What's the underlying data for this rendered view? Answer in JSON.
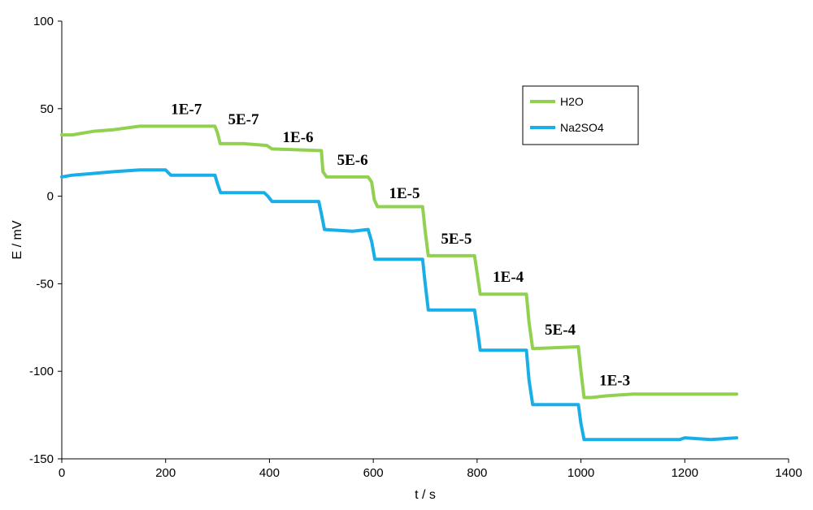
{
  "chart_data": {
    "type": "line",
    "title": "",
    "xlabel": "t / s",
    "ylabel": "E / mV",
    "xlim": [
      0,
      1400
    ],
    "ylim": [
      -150,
      100
    ],
    "x_ticks": [
      0,
      200,
      400,
      600,
      800,
      1000,
      1200,
      1400
    ],
    "y_ticks": [
      -150,
      -100,
      -50,
      0,
      50,
      100
    ],
    "grid": false,
    "legend_position": "top-right",
    "series": [
      {
        "name": "H2O",
        "color": "#92d050",
        "points": [
          [
            0,
            35
          ],
          [
            20,
            35
          ],
          [
            60,
            37
          ],
          [
            100,
            38
          ],
          [
            150,
            40
          ],
          [
            200,
            40
          ],
          [
            250,
            40
          ],
          [
            295,
            40
          ],
          [
            300,
            36
          ],
          [
            305,
            30
          ],
          [
            350,
            30
          ],
          [
            395,
            29
          ],
          [
            405,
            27
          ],
          [
            500,
            26
          ],
          [
            503,
            14
          ],
          [
            510,
            11
          ],
          [
            590,
            11
          ],
          [
            597,
            8
          ],
          [
            602,
            -2
          ],
          [
            608,
            -6
          ],
          [
            695,
            -6
          ],
          [
            700,
            -20
          ],
          [
            706,
            -34
          ],
          [
            795,
            -34
          ],
          [
            800,
            -44
          ],
          [
            806,
            -56
          ],
          [
            895,
            -56
          ],
          [
            900,
            -72
          ],
          [
            907,
            -87
          ],
          [
            995,
            -86
          ],
          [
            1000,
            -100
          ],
          [
            1006,
            -115
          ],
          [
            1020,
            -115
          ],
          [
            1050,
            -114
          ],
          [
            1100,
            -113
          ],
          [
            1300,
            -113
          ]
        ]
      },
      {
        "name": "Na2SO4",
        "color": "#1aaee8",
        "points": [
          [
            0,
            11
          ],
          [
            20,
            12
          ],
          [
            60,
            13
          ],
          [
            100,
            14
          ],
          [
            150,
            15
          ],
          [
            200,
            15
          ],
          [
            210,
            12
          ],
          [
            295,
            12
          ],
          [
            300,
            7
          ],
          [
            306,
            2
          ],
          [
            340,
            2
          ],
          [
            390,
            2
          ],
          [
            397,
            0
          ],
          [
            405,
            -3
          ],
          [
            495,
            -3
          ],
          [
            500,
            -10
          ],
          [
            506,
            -19
          ],
          [
            560,
            -20
          ],
          [
            590,
            -19
          ],
          [
            597,
            -26
          ],
          [
            603,
            -36
          ],
          [
            695,
            -36
          ],
          [
            700,
            -50
          ],
          [
            706,
            -65
          ],
          [
            795,
            -65
          ],
          [
            800,
            -75
          ],
          [
            806,
            -88
          ],
          [
            895,
            -88
          ],
          [
            900,
            -105
          ],
          [
            907,
            -119
          ],
          [
            995,
            -119
          ],
          [
            1000,
            -130
          ],
          [
            1006,
            -139
          ],
          [
            1100,
            -139
          ],
          [
            1190,
            -139
          ],
          [
            1200,
            -138
          ],
          [
            1250,
            -139
          ],
          [
            1300,
            -138
          ]
        ]
      }
    ],
    "annotations": [
      {
        "text": "1E-7",
        "x": 240,
        "y": 47
      },
      {
        "text": "5E-7",
        "x": 350,
        "y": 41
      },
      {
        "text": "1E-6",
        "x": 455,
        "y": 31
      },
      {
        "text": "5E-6",
        "x": 560,
        "y": 18
      },
      {
        "text": "1E-5",
        "x": 660,
        "y": -1
      },
      {
        "text": "5E-5",
        "x": 760,
        "y": -27
      },
      {
        "text": "1E-4",
        "x": 860,
        "y": -49
      },
      {
        "text": "5E-4",
        "x": 960,
        "y": -79
      },
      {
        "text": "1E-3",
        "x": 1065,
        "y": -108
      }
    ]
  }
}
